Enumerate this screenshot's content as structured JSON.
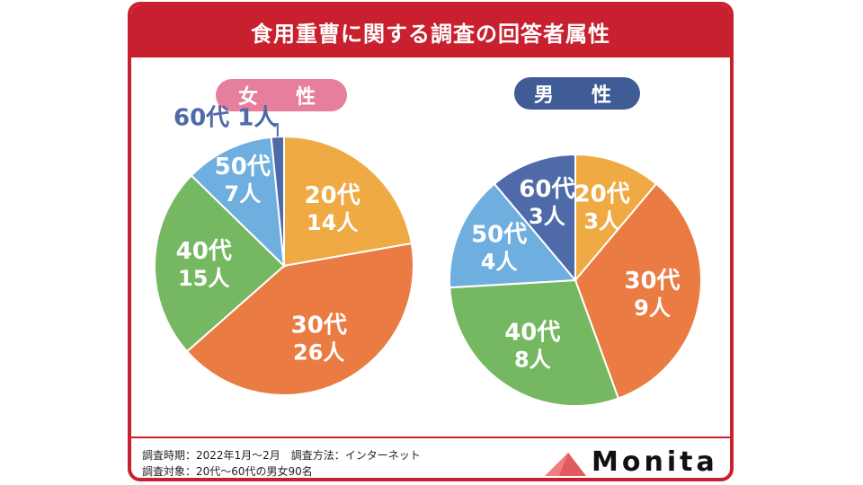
{
  "title": "食用重曹に関する調査の回答者属性",
  "colors": {
    "accent": "#c8202e",
    "age20": "#efaa44",
    "age30": "#e97b43",
    "age40": "#76b862",
    "age50": "#6eafe0",
    "age60": "#4e6aa8",
    "female_pill": "#e57f9b",
    "male_pill": "#3f5c96"
  },
  "chart_data": [
    {
      "type": "pie",
      "title": "女　性",
      "categories": [
        "20代",
        "30代",
        "40代",
        "50代",
        "60代"
      ],
      "values": [
        14,
        26,
        15,
        7,
        1
      ],
      "value_labels": [
        "14人",
        "26人",
        "15人",
        "7人",
        "1人"
      ],
      "start": "top",
      "direction": "clockwise"
    },
    {
      "type": "pie",
      "title": "男　性",
      "categories": [
        "20代",
        "30代",
        "40代",
        "50代",
        "60代"
      ],
      "values": [
        3,
        9,
        8,
        4,
        3
      ],
      "value_labels": [
        "3人",
        "9人",
        "8人",
        "4人",
        "3人"
      ],
      "start": "top",
      "direction": "clockwise"
    }
  ],
  "footer": {
    "line1": "調査時期：2022年1月～2月　調査方法：インターネット",
    "line2": "調査対象：20代～60代の男女90名"
  },
  "brand": {
    "name": "Monita",
    "icon": "triangle-logo-icon"
  }
}
